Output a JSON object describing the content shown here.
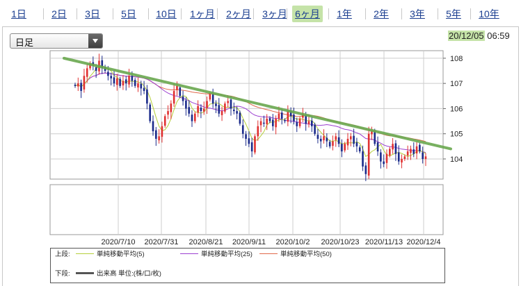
{
  "tabs": [
    {
      "label": "1日",
      "active": false
    },
    {
      "label": "2日",
      "active": false
    },
    {
      "label": "3日",
      "active": false
    },
    {
      "label": "5日",
      "active": false
    },
    {
      "label": "10日",
      "active": false
    },
    {
      "label": "1ヶ月",
      "active": false
    },
    {
      "label": "2ヶ月",
      "active": false
    },
    {
      "label": "3ヶ月",
      "active": false
    },
    {
      "label": "6ヶ月",
      "active": true
    },
    {
      "label": "1年",
      "active": false
    },
    {
      "label": "2年",
      "active": false
    },
    {
      "label": "3年",
      "active": false
    },
    {
      "label": "5年",
      "active": false
    },
    {
      "label": "10年",
      "active": false
    }
  ],
  "period_select": {
    "value": "日足"
  },
  "timestamp": {
    "date": "20/12/05",
    "time": "06:59"
  },
  "colors": {
    "accent_highlight": "#c5e3a8",
    "up_candle": "#e03030",
    "down_candle": "#1a2a8a",
    "sma5": "#b5cf3a",
    "sma25": "#9b3fd0",
    "sma50": "#e0684a",
    "trendline": "#6aa84f"
  },
  "legend": {
    "upper_label": "上段:",
    "sma5_label": "単純移動平均(5)",
    "sma25_label": "単純移動平均(25)",
    "sma50_label": "単純移動平均(50)",
    "lower_label": "下段:",
    "volume_label": "出来高 単位:(株/口/枚)"
  },
  "chart_data": {
    "type": "candlestick",
    "y_ticks": [
      "104",
      "105",
      "106",
      "107",
      "108"
    ],
    "ylim": [
      103.2,
      108.3
    ],
    "x_ticks": [
      "2020/7/10",
      "2020/7/31",
      "2020/8/21",
      "2020/9/11",
      "2020/10/2",
      "2020/10/23",
      "2020/11/13",
      "2020/12/4"
    ],
    "closes": [
      106.9,
      107.0,
      106.7,
      107.3,
      107.6,
      107.8,
      107.7,
      107.5,
      107.9,
      107.6,
      107.5,
      107.3,
      107.2,
      107.0,
      107.2,
      106.9,
      107.1,
      107.0,
      107.3,
      107.1,
      106.9,
      107.0,
      106.8,
      106.7,
      106.2,
      105.5,
      105.1,
      104.8,
      104.9,
      105.3,
      105.7,
      105.9,
      106.2,
      106.7,
      106.9,
      106.5,
      106.3,
      106.0,
      105.8,
      105.5,
      105.8,
      106.1,
      105.9,
      106.0,
      106.3,
      106.6,
      106.2,
      106.1,
      105.8,
      105.9,
      106.2,
      106.3,
      106.0,
      105.9,
      105.8,
      105.4,
      105.0,
      104.8,
      104.6,
      104.3,
      104.9,
      105.3,
      105.5,
      105.4,
      105.6,
      105.5,
      105.3,
      105.6,
      105.8,
      105.6,
      105.5,
      105.9,
      105.7,
      105.5,
      105.3,
      105.6,
      105.8,
      105.4,
      105.5,
      105.3,
      105.0,
      104.8,
      104.7,
      104.9,
      104.7,
      104.5,
      104.7,
      104.9,
      104.6,
      104.3,
      104.6,
      104.8,
      104.9,
      104.6,
      104.5,
      104.3,
      103.7,
      103.4,
      105.0,
      105.1,
      104.6,
      104.3,
      103.9,
      103.8,
      104.2,
      104.4,
      104.6,
      104.2,
      103.9,
      104.0,
      104.1,
      104.3,
      104.4,
      104.2,
      104.5,
      104.3,
      104.0,
      104.1
    ],
    "trendline": {
      "start": [
        0,
        108.0
      ],
      "end": [
        118,
        104.4
      ]
    }
  }
}
